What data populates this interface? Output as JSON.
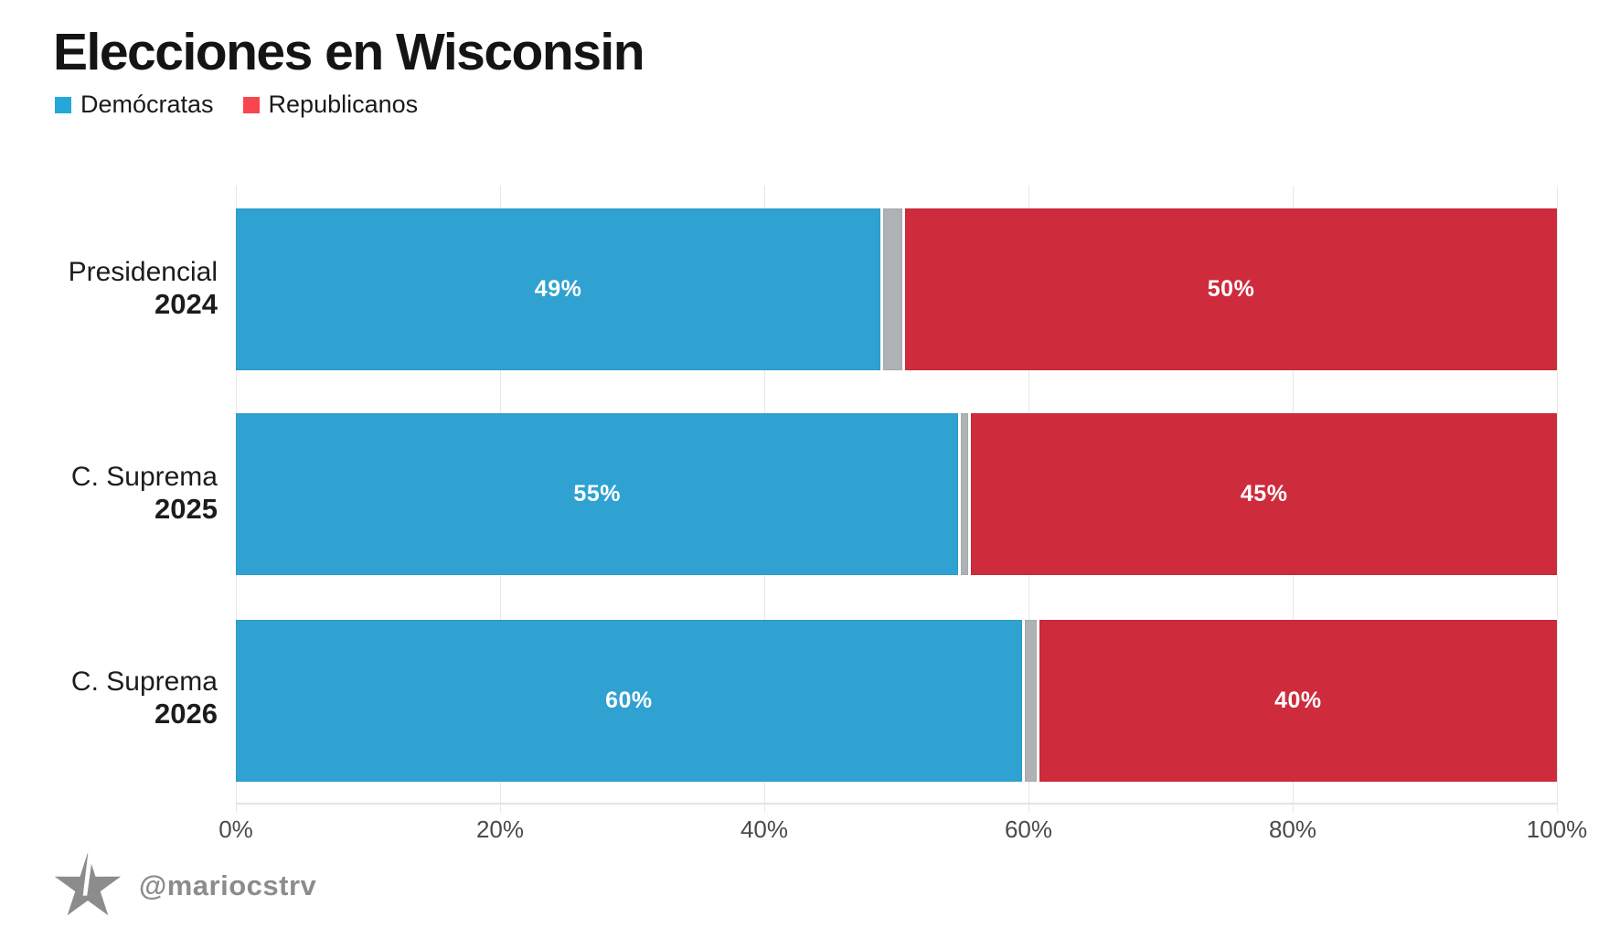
{
  "title": "Elecciones en Wisconsin",
  "legend": {
    "democrats": {
      "label": "Demócratas",
      "color": "#25a8d8"
    },
    "republicans": {
      "label": "Republicanos",
      "color": "#f8464f"
    }
  },
  "colors": {
    "dem_bar": "#2fa2d1",
    "rep_bar": "#ce2b3c",
    "other_bar": "#afb2b4",
    "grid": "#e7e7e7",
    "axis_text": "#4a4a4a",
    "footer_gray": "#8c8c8c"
  },
  "chart_data": {
    "type": "bar",
    "variant": "horizontal-stacked",
    "title": "Elecciones en Wisconsin",
    "categories": [
      "Presidencial 2024",
      "C. Suprema 2025",
      "C. Suprema 2026"
    ],
    "series": [
      {
        "name": "Demócratas",
        "values": [
          49,
          55,
          60
        ]
      },
      {
        "name": "Republicanos",
        "values": [
          50,
          45,
          40
        ]
      },
      {
        "name": "Otros (sin etiqueta, gris)",
        "values": [
          1.4,
          0.5,
          0.9
        ]
      }
    ],
    "x_axis": {
      "ticks": [
        "0%",
        "20%",
        "40%",
        "60%",
        "80%",
        "100%"
      ],
      "min": 0,
      "max": 100,
      "grid": true
    },
    "legend_position": "top-left",
    "rows": [
      {
        "label": "Presidencial",
        "year": "2024",
        "dem_label": "49%",
        "rep_label": "50%",
        "dem_w": 48.8,
        "other_w": 1.45
      },
      {
        "label": "C. Suprema",
        "year": "2025",
        "dem_label": "55%",
        "rep_label": "45%",
        "dem_w": 54.7,
        "other_w": 0.55
      },
      {
        "label": "C. Suprema",
        "year": "2026",
        "dem_label": "60%",
        "rep_label": "40%",
        "dem_w": 59.5,
        "other_w": 0.9
      }
    ]
  },
  "footer": {
    "handle": "@mariocstrv",
    "logo": "star-logo"
  }
}
